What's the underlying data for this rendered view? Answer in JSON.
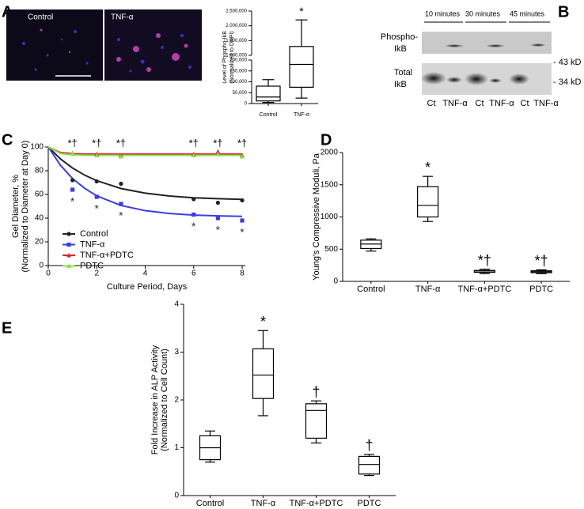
{
  "panel_labels": [
    "A",
    "B",
    "C",
    "D",
    "E"
  ],
  "images": {
    "labels": [
      "Control",
      "TNF-α"
    ]
  },
  "blot": {
    "timepoints": [
      "10 minutes",
      "30 minutes",
      "45 minutes"
    ],
    "rows": [
      [
        "Phospho-",
        "IkB"
      ],
      [
        "Total",
        "IkB"
      ]
    ],
    "markers": [
      "- 43 kD",
      "- 34 kD"
    ],
    "lanes": [
      "Ct",
      "TNF-α",
      "Ct",
      "TNF-α",
      "Ct",
      "TNF-α"
    ]
  },
  "chart_data": [
    {
      "type": "box",
      "categories": [
        "Control",
        "TNF-α"
      ],
      "boxes": [
        {
          "min": 5000,
          "q1": 12000,
          "median": 30000,
          "q3": 80000,
          "max": 110000
        },
        {
          "min": 25000,
          "q1": 75000,
          "median": 180000,
          "q3": 1300000,
          "max": 2200000
        }
      ],
      "annotations": [
        null,
        "*"
      ],
      "ylim": [
        0,
        2500000
      ],
      "axis_break": [
        200000,
        1000000
      ],
      "yticks": [
        {
          "value": 0,
          "label": "0"
        },
        {
          "value": 50000,
          "label": "50,000"
        },
        {
          "value": 100000,
          "label": "100,000"
        },
        {
          "value": 150000,
          "label": "150,000"
        },
        {
          "value": 200000,
          "label": "200,000"
        },
        {
          "value": 1000000,
          "label": "1,000,000"
        },
        {
          "value": 1500000,
          "label": "1,500,000"
        },
        {
          "value": 2000000,
          "label": "2,000,000"
        },
        {
          "value": 2500000,
          "label": "2,500,000"
        }
      ],
      "ylabel": [
        "Level of Phospho-IkB",
        "(Normalized to DAPI)"
      ],
      "color": "#000000"
    },
    {
      "type": "line",
      "x": [
        1,
        2,
        3,
        6,
        7,
        8
      ],
      "series": [
        {
          "name": "Control",
          "color": "#222222",
          "marker": "circle",
          "values": [
            72,
            71,
            69,
            56,
            53,
            55
          ],
          "errors": [
            1.5,
            1.5,
            1,
            0.8,
            1,
            1.5
          ]
        },
        {
          "name": "TNF-α",
          "color": "#3a3ee0",
          "marker": "square",
          "values": [
            64,
            58,
            52,
            43,
            40,
            38
          ],
          "errors": [
            1,
            1,
            1.5,
            1,
            1.5,
            1
          ],
          "significance": [
            "*",
            "*",
            "*",
            "*",
            "*",
            "*"
          ]
        },
        {
          "name": "TNF-α+PDTC",
          "color": "#d42a2a",
          "marker": "triangle",
          "values": [
            95,
            94,
            93,
            94,
            96,
            93
          ],
          "errors": [
            1,
            1,
            1,
            1,
            2,
            1
          ]
        },
        {
          "name": "PDTC",
          "color": "#86e048",
          "marker": "triangle",
          "values": [
            95,
            93,
            92,
            93,
            94,
            92
          ],
          "errors": [
            1.5,
            1,
            1.5,
            1,
            2,
            1.5
          ]
        }
      ],
      "fits": [
        {
          "color": "#222222",
          "x": [
            0,
            0.5,
            1,
            1.5,
            2,
            3,
            4,
            5,
            6,
            7,
            8
          ],
          "values": [
            100,
            90.0,
            82.3,
            76.3,
            71.6,
            65.0,
            61.1,
            58.7,
            57.2,
            56.4,
            55.8
          ]
        },
        {
          "color": "#3a3ee0",
          "x": [
            0,
            0.5,
            1,
            1.5,
            2,
            3,
            4,
            5,
            6,
            7,
            8
          ],
          "values": [
            100,
            84.7,
            73.4,
            65.2,
            58.8,
            50.7,
            46.3,
            43.9,
            42.6,
            41.9,
            41.5
          ]
        },
        {
          "color": "#d42a2a",
          "x": [
            0,
            0.5,
            1,
            1.5,
            2,
            3,
            4,
            5,
            6,
            7,
            8
          ],
          "values": [
            100,
            95.3,
            94.3,
            94.1,
            94.0,
            94,
            94,
            94,
            94,
            94,
            94
          ]
        },
        {
          "color": "#86e048",
          "x": [
            0,
            0.5,
            1,
            1.5,
            2,
            3,
            4,
            5,
            6,
            7,
            8
          ],
          "values": [
            100,
            94.6,
            93.3,
            93.1,
            93.0,
            93,
            93,
            93,
            93,
            93,
            93
          ]
        }
      ],
      "significance_top": [
        "*†",
        "*†",
        "*†",
        "*†",
        "*†",
        "*†"
      ],
      "xlim": [
        0,
        8
      ],
      "xticks": [
        0,
        2,
        4,
        6,
        8
      ],
      "ylim": [
        0,
        100
      ],
      "yticks": [
        0,
        20,
        40,
        60,
        80,
        100
      ],
      "xlabel": "Culture Period, Days",
      "ylabel": [
        "Gel Diameter, %",
        "(Normalized to Diameter at Day 0)"
      ],
      "legend": "lower left"
    },
    {
      "type": "box",
      "categories": [
        "Control",
        "TNF-α",
        "TNF-α+PDTC",
        "PDTC"
      ],
      "boxes": [
        {
          "min": 470,
          "q1": 510,
          "median": 580,
          "q3": 640,
          "max": 660
        },
        {
          "min": 930,
          "q1": 1000,
          "median": 1180,
          "q3": 1470,
          "max": 1630
        },
        {
          "min": 120,
          "q1": 140,
          "median": 160,
          "q3": 170,
          "max": 190
        },
        {
          "min": 120,
          "q1": 135,
          "median": 150,
          "q3": 165,
          "max": 180
        }
      ],
      "annotations": [
        null,
        "*",
        "*†",
        "*†"
      ],
      "ylim": [
        0,
        2000
      ],
      "yticks": [
        0,
        500,
        1000,
        1500,
        2000
      ],
      "ylabel": [
        "Young's Compressive Moduli, Pa"
      ],
      "color": "#000000"
    },
    {
      "type": "box",
      "categories": [
        "Control",
        "TNF-α",
        "TNF-α+PDTC",
        "PDTC"
      ],
      "boxes": [
        {
          "min": 0.7,
          "q1": 0.75,
          "median": 1.0,
          "q3": 1.25,
          "max": 1.35
        },
        {
          "min": 1.67,
          "q1": 2.03,
          "median": 2.52,
          "q3": 3.07,
          "max": 3.45
        },
        {
          "min": 1.1,
          "q1": 1.2,
          "median": 1.78,
          "q3": 1.92,
          "max": 1.98
        },
        {
          "min": 0.42,
          "q1": 0.45,
          "median": 0.65,
          "q3": 0.82,
          "max": 0.86
        }
      ],
      "annotations": [
        null,
        "*",
        "†",
        "†"
      ],
      "ylim": [
        0,
        4
      ],
      "yticks": [
        0,
        1,
        2,
        3,
        4
      ],
      "ylabel": [
        "Fold Increase in ALP Activity",
        "(Normalized to Cell Count)"
      ],
      "color": "#000000"
    }
  ]
}
